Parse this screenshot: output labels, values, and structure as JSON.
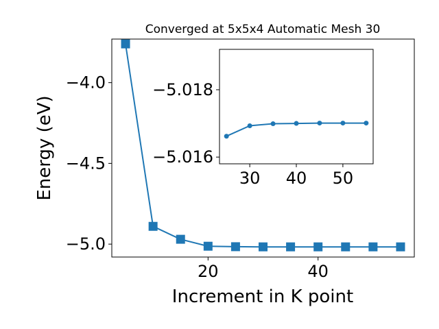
{
  "chart_data": [
    {
      "type": "line",
      "title": "Converged at 5x5x4 Automatic Mesh 30",
      "xlabel": "Increment in K point",
      "ylabel": "Energy (eV)",
      "x": [
        5,
        10,
        15,
        20,
        25,
        30,
        35,
        40,
        45,
        50,
        55
      ],
      "series": [
        {
          "values": [
            -3.76,
            -4.89,
            -4.97,
            -5.013,
            -5.016,
            -5.017,
            -5.017,
            -5.017,
            -5.017,
            -5.017,
            -5.017
          ]
        }
      ],
      "xlim": [
        2.5,
        57.5
      ],
      "ylim": [
        -5.08,
        -3.73
      ],
      "xticks": [
        20,
        40
      ],
      "yticks": [
        -4.0,
        -4.5,
        -5.0
      ],
      "ytick_labels": [
        "−4.0",
        "−4.5",
        "−5.0"
      ],
      "marker": "square",
      "color": "#1f77b4",
      "grid": false
    },
    {
      "type": "line",
      "title": "",
      "xlabel": "",
      "ylabel": "",
      "x": [
        25,
        30,
        35,
        40,
        45,
        50,
        55
      ],
      "series": [
        {
          "values": [
            -5.01662,
            -5.01693,
            -5.01699,
            -5.017,
            -5.01701,
            -5.01701,
            -5.01701
          ]
        }
      ],
      "xlim": [
        23.5,
        56.5
      ],
      "ylim": [
        -5.0158,
        -5.0192
      ],
      "y_inverted": true,
      "xticks": [
        30,
        40,
        50
      ],
      "yticks": [
        -5.018,
        -5.016
      ],
      "ytick_labels": [
        "−5.018",
        "−5.016"
      ],
      "marker": "circle",
      "color": "#1f77b4",
      "grid": false
    }
  ]
}
